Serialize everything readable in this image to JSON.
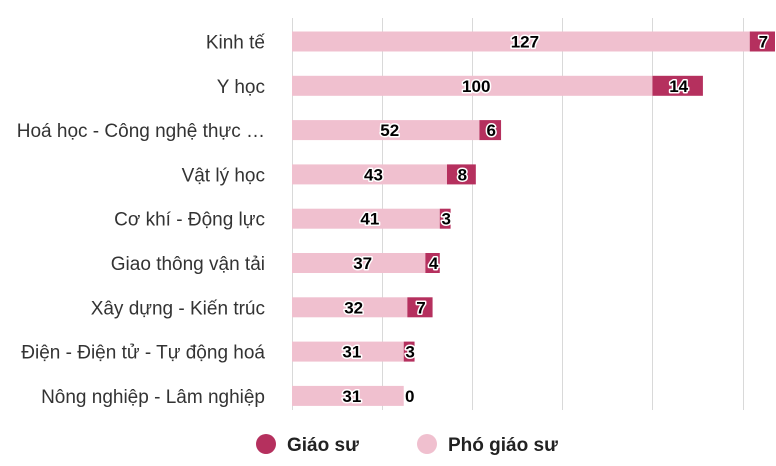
{
  "chart_data": {
    "type": "bar",
    "orientation": "horizontal",
    "stacked": true,
    "categories": [
      "Kinh tế",
      "Y học",
      "Hoá học - Công nghệ thực …",
      "Vật lý học",
      "Cơ khí - Động lực",
      "Giao thông vận tải",
      "Xây dựng - Kiến trúc",
      "Điện - Điện tử - Tự động hoá",
      "Nông nghiệp - Lâm nghiệp"
    ],
    "series": [
      {
        "name": "Phó giáo sư",
        "color": "#f0c0cf",
        "values": [
          127,
          100,
          52,
          43,
          41,
          37,
          32,
          31,
          31
        ]
      },
      {
        "name": "Giáo sư",
        "color": "#b5305e",
        "values": [
          7,
          14,
          6,
          8,
          3,
          4,
          7,
          3,
          0
        ]
      }
    ],
    "xlim": [
      0,
      134
    ],
    "grid": true,
    "legend_position": "bottom"
  }
}
